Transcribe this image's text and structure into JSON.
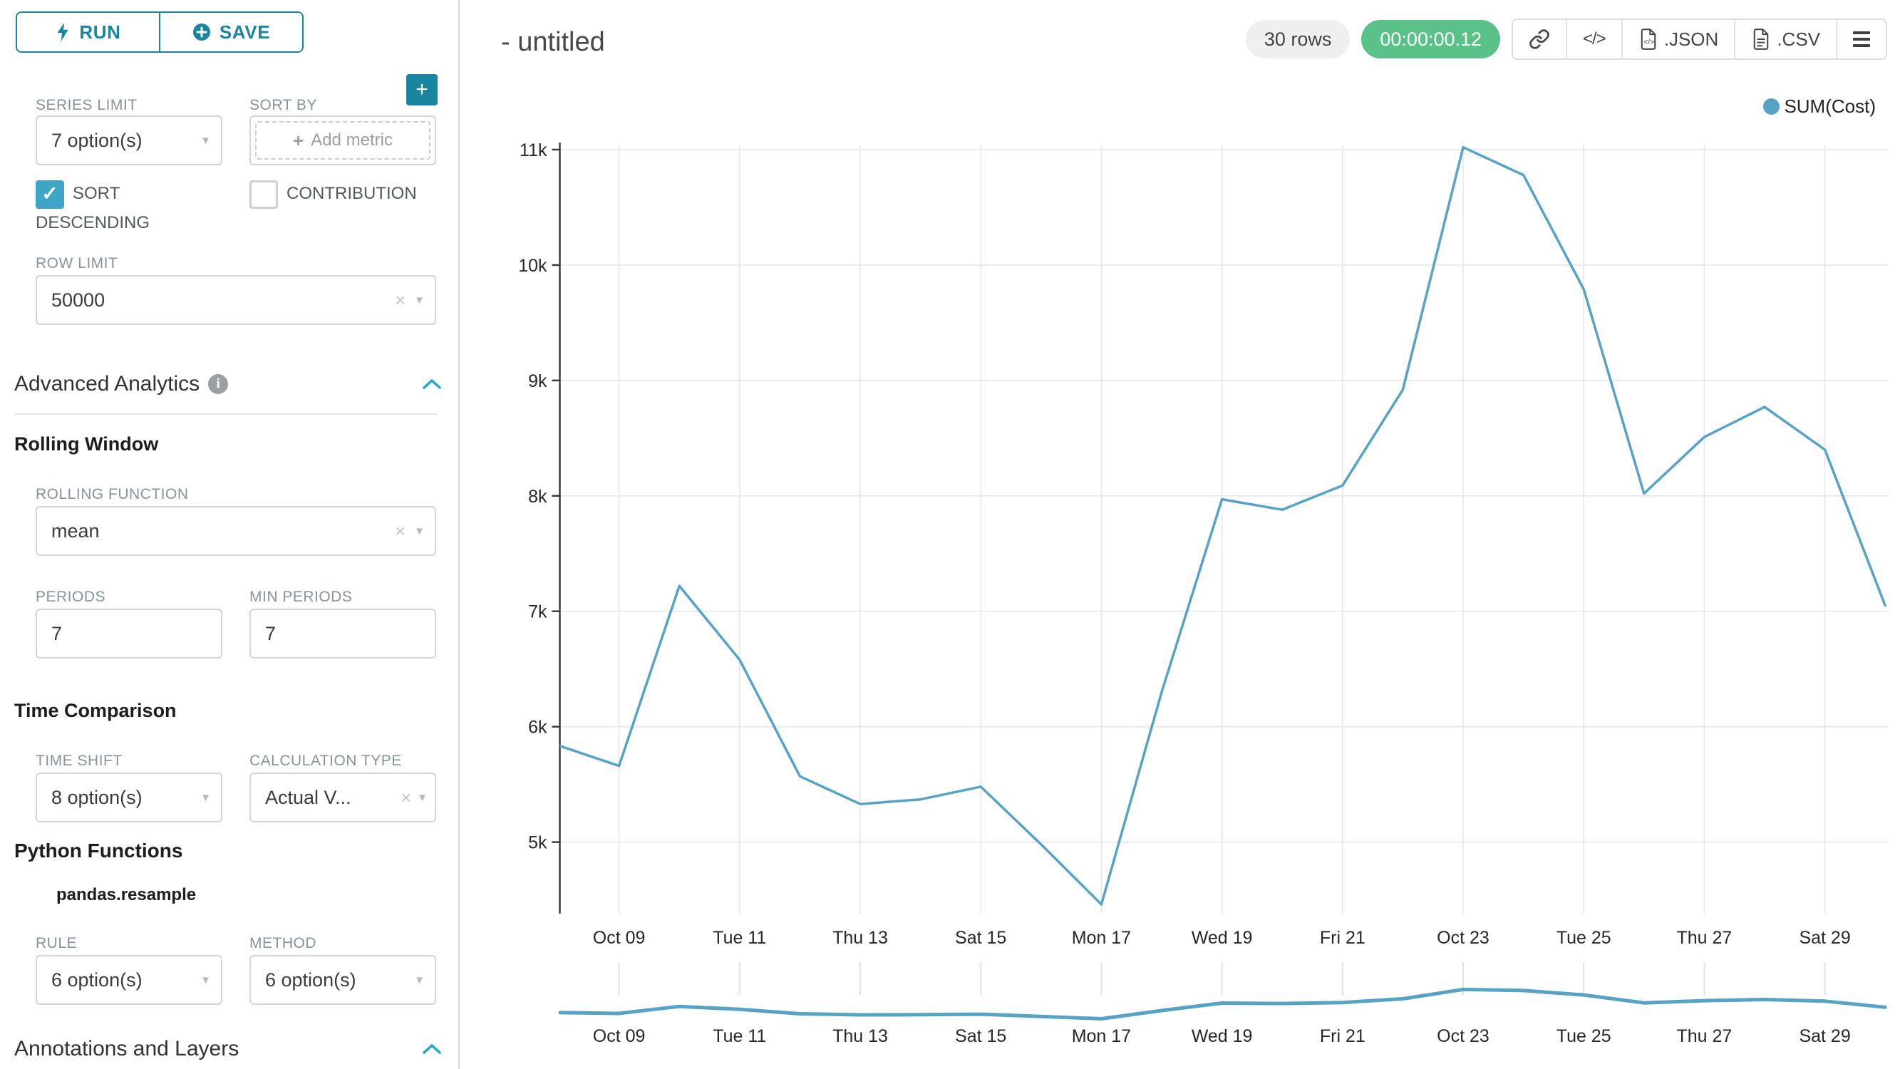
{
  "colors": {
    "primary": "#20A7C9",
    "primary_dark": "#1A85A0",
    "line": "#57A3C6",
    "green_badge": "#5AC189",
    "grid": "#e7e7e7",
    "axis": "#3b3b3b",
    "label_gray": "#87939F"
  },
  "icons": {
    "caret_down": "▼",
    "clear_x": "×",
    "plus": "+",
    "check": "✓",
    "info": "i",
    "code": "</>",
    "file_code": "<>"
  },
  "sidebar": {
    "run_label": "RUN",
    "save_label": "SAVE",
    "series_limit_label": "SERIES LIMIT",
    "series_limit_value": "7 option(s)",
    "sort_by_label": "SORT BY",
    "sort_by_placeholder": "Add metric",
    "sort_descending_label": "SORT DESCENDING",
    "contribution_label": "CONTRIBUTION",
    "row_limit_label": "ROW LIMIT",
    "row_limit_value": "50000",
    "advanced_analytics_title": "Advanced Analytics",
    "rolling_window_title": "Rolling Window",
    "rolling_function_label": "ROLLING FUNCTION",
    "rolling_function_value": "mean",
    "periods_label": "PERIODS",
    "periods_value": "7",
    "min_periods_label": "MIN PERIODS",
    "min_periods_value": "7",
    "time_comparison_title": "Time Comparison",
    "time_shift_label": "TIME SHIFT",
    "time_shift_value": "8 option(s)",
    "calculation_type_label": "CALCULATION TYPE",
    "calculation_type_value": "Actual V...",
    "python_functions_title": "Python Functions",
    "pandas_resample_label": "pandas.resample",
    "rule_label": "RULE",
    "rule_value": "6 option(s)",
    "method_label": "METHOD",
    "method_value": "6 option(s)",
    "annotations_title": "Annotations and Layers"
  },
  "header": {
    "title": "- untitled",
    "rows_badge": "30 rows",
    "timer_badge": "00:00:00.12",
    "json_label": ".JSON",
    "csv_label": ".CSV"
  },
  "legend": {
    "label": "SUM(Cost)"
  },
  "chart_data": {
    "type": "line",
    "x": [
      "Oct 08",
      "Oct 09",
      "Oct 10",
      "Oct 11",
      "Oct 12",
      "Oct 13",
      "Oct 14",
      "Oct 15",
      "Oct 16",
      "Oct 17",
      "Oct 18",
      "Oct 19",
      "Oct 20",
      "Oct 21",
      "Oct 22",
      "Oct 23",
      "Oct 24",
      "Oct 25",
      "Oct 26",
      "Oct 27",
      "Oct 28",
      "Oct 29",
      "Oct 30"
    ],
    "series": [
      {
        "name": "SUM(Cost)",
        "values": [
          5830,
          5660,
          7220,
          6580,
          5570,
          5330,
          5370,
          5480,
          4980,
          4460,
          6300,
          7970,
          7880,
          8090,
          8920,
          11020,
          10780,
          9790,
          8020,
          8510,
          8770,
          8400,
          7050
        ]
      }
    ],
    "x_tick_labels": [
      "Oct 09",
      "Tue 11",
      "Thu 13",
      "Sat 15",
      "Mon 17",
      "Wed 19",
      "Fri 21",
      "Oct 23",
      "Tue 25",
      "Thu 27",
      "Sat 29"
    ],
    "x_tick_indices": [
      1,
      3,
      5,
      7,
      9,
      11,
      13,
      15,
      17,
      19,
      21
    ],
    "y_ticks": [
      "5k",
      "6k",
      "7k",
      "8k",
      "9k",
      "10k",
      "11k"
    ],
    "y_tick_values": [
      5000,
      6000,
      7000,
      8000,
      9000,
      10000,
      11000
    ],
    "ylim": [
      4380,
      11080
    ],
    "grid": true,
    "legend_position": "top-right",
    "has_mini_preview": true
  }
}
